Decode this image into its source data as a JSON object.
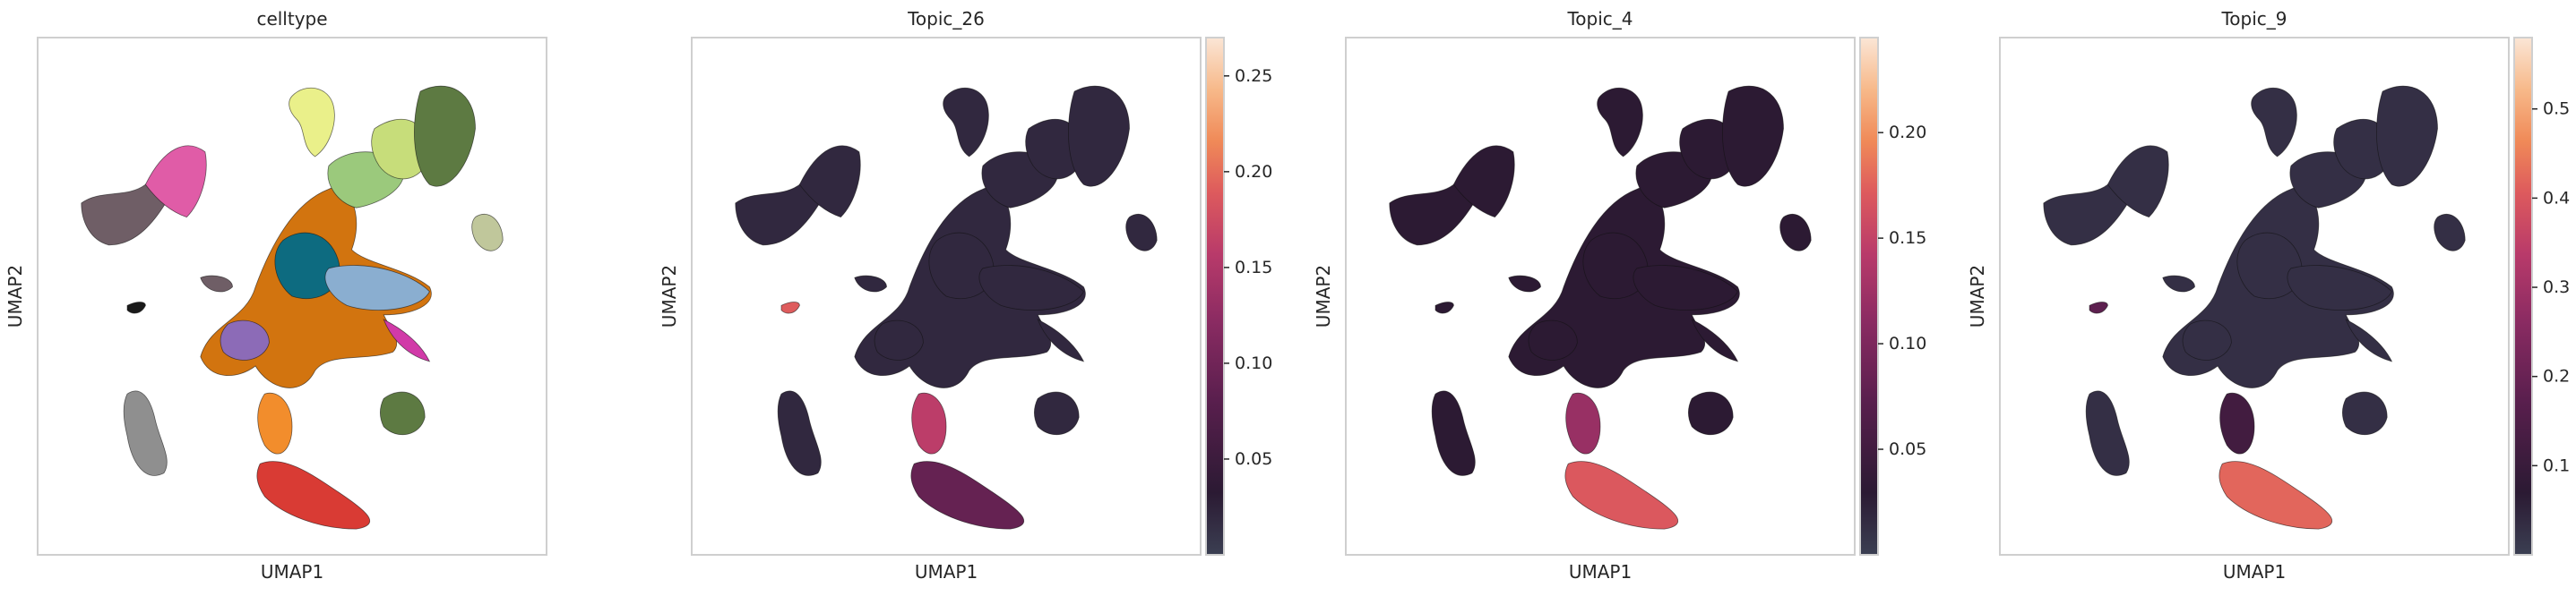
{
  "figure": {
    "xlabel": "UMAP1",
    "ylabel": "UMAP2"
  },
  "chart_data": [
    {
      "type": "scatter",
      "title": "celltype",
      "xlabel": "UMAP1",
      "ylabel": "UMAP2",
      "color_mode": "categorical",
      "colorbar": null,
      "grid": false
    },
    {
      "type": "scatter",
      "title": "Topic_26",
      "xlabel": "UMAP1",
      "ylabel": "UMAP2",
      "color_mode": "continuous",
      "colorbar": {
        "range": [
          0.0,
          0.27
        ],
        "ticks": [
          0.05,
          0.1,
          0.15,
          0.2,
          0.25
        ],
        "tick_labels": [
          "0.05",
          "0.10",
          "0.15",
          "0.20",
          "0.25"
        ]
      },
      "hotspots": {
        "isolated_blob": 0.19,
        "lower_strip_top": 0.16,
        "bottom_elongated": 0.09,
        "main_body": 0.02
      },
      "grid": false
    },
    {
      "type": "scatter",
      "title": "Topic_4",
      "xlabel": "UMAP1",
      "ylabel": "UMAP2",
      "color_mode": "continuous",
      "colorbar": {
        "range": [
          0.0,
          0.245
        ],
        "ticks": [
          0.05,
          0.1,
          0.15,
          0.2
        ],
        "tick_labels": [
          "0.05",
          "0.10",
          "0.15",
          "0.20"
        ]
      },
      "hotspots": {
        "isolated_blob": 0.03,
        "lower_strip_top": 0.12,
        "bottom_elongated": 0.17,
        "main_body": 0.03
      },
      "grid": false
    },
    {
      "type": "scatter",
      "title": "Topic_9",
      "xlabel": "UMAP1",
      "ylabel": "UMAP2",
      "color_mode": "continuous",
      "colorbar": {
        "range": [
          0.0,
          0.58
        ],
        "ticks": [
          0.1,
          0.2,
          0.3,
          0.4,
          0.5
        ],
        "tick_labels": [
          "0.1",
          "0.2",
          "0.3",
          "0.4",
          "0.5"
        ]
      },
      "hotspots": {
        "isolated_blob": 0.18,
        "lower_strip_top": 0.12,
        "bottom_elongated": 0.42,
        "main_body": 0.03
      },
      "grid": false
    }
  ],
  "colors": {
    "frame": "#cfcfcf",
    "text": "#262626",
    "colormap": [
      "#3b3f52",
      "#2b1a33",
      "#5a1f4e",
      "#8a2b62",
      "#b83a6a",
      "#dd5a5d",
      "#f08a58",
      "#f7b98a",
      "#fbe6d6"
    ],
    "celltype_palette": [
      "#6f5e66",
      "#e05ca7",
      "#eaf08a",
      "#5d7a42",
      "#9bc97c",
      "#c7dd7a",
      "#0d6b80",
      "#8aaed0",
      "#b9d7ee",
      "#8c6bb7",
      "#d2740f",
      "#d13aa8",
      "#f28d2c",
      "#d93b34",
      "#8f8f8f",
      "#1a1a1a",
      "#c0c79b",
      "#e7c4b8"
    ]
  }
}
